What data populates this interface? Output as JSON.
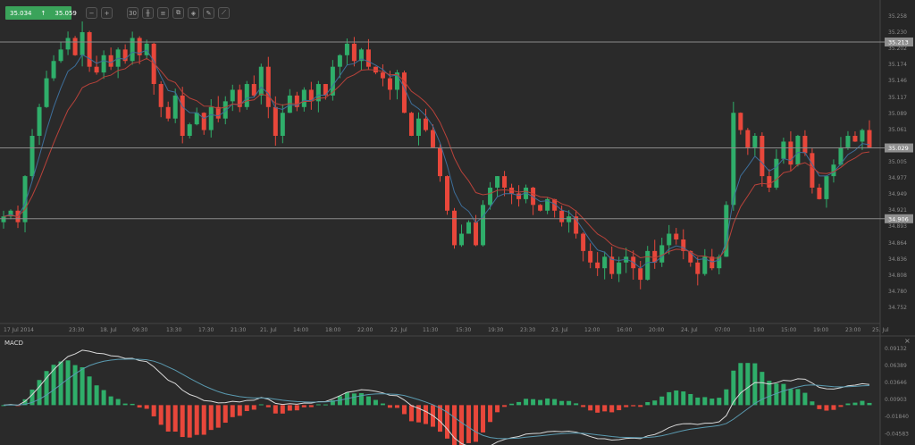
{
  "toolbar": {
    "bid": "35.034",
    "ask": "35.059",
    "arrow_icon": "up-arrow",
    "buttons": [
      {
        "name": "zoom-out-button",
        "icon": "zoom-out-icon",
        "glyph": "−"
      },
      {
        "name": "zoom-in-button",
        "icon": "zoom-in-icon",
        "glyph": "+"
      },
      {
        "name": "timeframe-button",
        "icon": "timeframe-icon",
        "glyph": "30"
      },
      {
        "name": "chart-type-button",
        "icon": "candlestick-icon",
        "glyph": "╫"
      },
      {
        "name": "indicators-button",
        "icon": "indicators-icon",
        "glyph": "≡"
      },
      {
        "name": "snapshot-button",
        "icon": "snapshot-icon",
        "glyph": "⧉"
      },
      {
        "name": "objects-button",
        "icon": "objects-icon",
        "glyph": "◈"
      },
      {
        "name": "edit-button",
        "icon": "edit-icon",
        "glyph": "✎"
      },
      {
        "name": "draw-button",
        "icon": "draw-icon",
        "glyph": "⟋"
      }
    ]
  },
  "colors": {
    "up": "#2fae6a",
    "down": "#e8473b",
    "ema_fast": "#3d6e9a",
    "ema_slow": "#b8423a",
    "macd_line": "#d8d8d8",
    "signal_line": "#5a9ab0",
    "background": "#2a2a2a"
  },
  "chart_data": {
    "type": "candlestick",
    "price_axis": {
      "ticks": [
        "35.258",
        "35.230",
        "35.202",
        "35.174",
        "35.146",
        "35.117",
        "35.089",
        "35.061",
        "35.033",
        "35.005",
        "34.977",
        "34.949",
        "34.921",
        "34.893",
        "34.864",
        "34.836",
        "34.808",
        "34.780",
        "34.752"
      ],
      "range": [
        34.752,
        35.258
      ]
    },
    "horizontal_levels": [
      "35.213",
      "35.029",
      "34.906"
    ],
    "time_axis": [
      "17 Jul 2014",
      "23:30",
      "18. Jul",
      "09:30",
      "13:30",
      "17:30",
      "21:30",
      "21. Jul",
      "14:00",
      "18:00",
      "22:00",
      "22. Jul",
      "11:30",
      "15:30",
      "19:30",
      "23:30",
      "23. Jul",
      "12:00",
      "16:00",
      "20:00",
      "24. Jul",
      "07:00",
      "11:00",
      "15:00",
      "19:00",
      "23:00",
      "25. Jul"
    ],
    "closes": [
      34.91,
      34.92,
      34.9,
      34.98,
      35.05,
      35.1,
      35.15,
      35.18,
      35.2,
      35.22,
      35.19,
      35.23,
      35.17,
      35.16,
      35.19,
      35.17,
      35.2,
      35.18,
      35.22,
      35.19,
      35.21,
      35.14,
      35.1,
      35.08,
      35.12,
      35.05,
      35.07,
      35.09,
      35.06,
      35.1,
      35.08,
      35.11,
      35.13,
      35.1,
      35.14,
      35.12,
      35.17,
      35.1,
      35.05,
      35.09,
      35.12,
      35.1,
      35.13,
      35.11,
      35.14,
      35.12,
      35.17,
      35.19,
      35.21,
      35.18,
      35.2,
      35.17,
      35.16,
      35.15,
      35.13,
      35.16,
      35.09,
      35.05,
      35.08,
      35.06,
      35.03,
      34.98,
      34.92,
      34.86,
      34.88,
      34.9,
      34.86,
      34.93,
      34.96,
      34.98,
      34.96,
      34.95,
      34.94,
      34.96,
      34.93,
      34.92,
      34.94,
      34.92,
      34.9,
      34.91,
      34.88,
      34.85,
      34.83,
      34.82,
      34.84,
      34.81,
      34.83,
      34.84,
      34.82,
      34.8,
      34.85,
      34.83,
      34.86,
      34.88,
      34.87,
      34.85,
      34.83,
      34.81,
      34.84,
      34.82,
      34.84,
      34.93,
      35.09,
      35.06,
      35.03,
      35.05,
      34.98,
      34.96,
      35.01,
      35.04,
      35.0,
      35.05,
      35.02,
      34.96,
      34.94,
      34.98,
      35.0,
      35.03,
      35.05,
      35.04,
      35.06,
      35.03
    ],
    "macd": {
      "label": "MACD",
      "ticks": [
        "0.09132",
        "0.06389",
        "0.03646",
        "0.00903",
        "-0.01840",
        "-0.04583"
      ],
      "range": [
        -0.0526,
        0.0982
      ]
    }
  }
}
